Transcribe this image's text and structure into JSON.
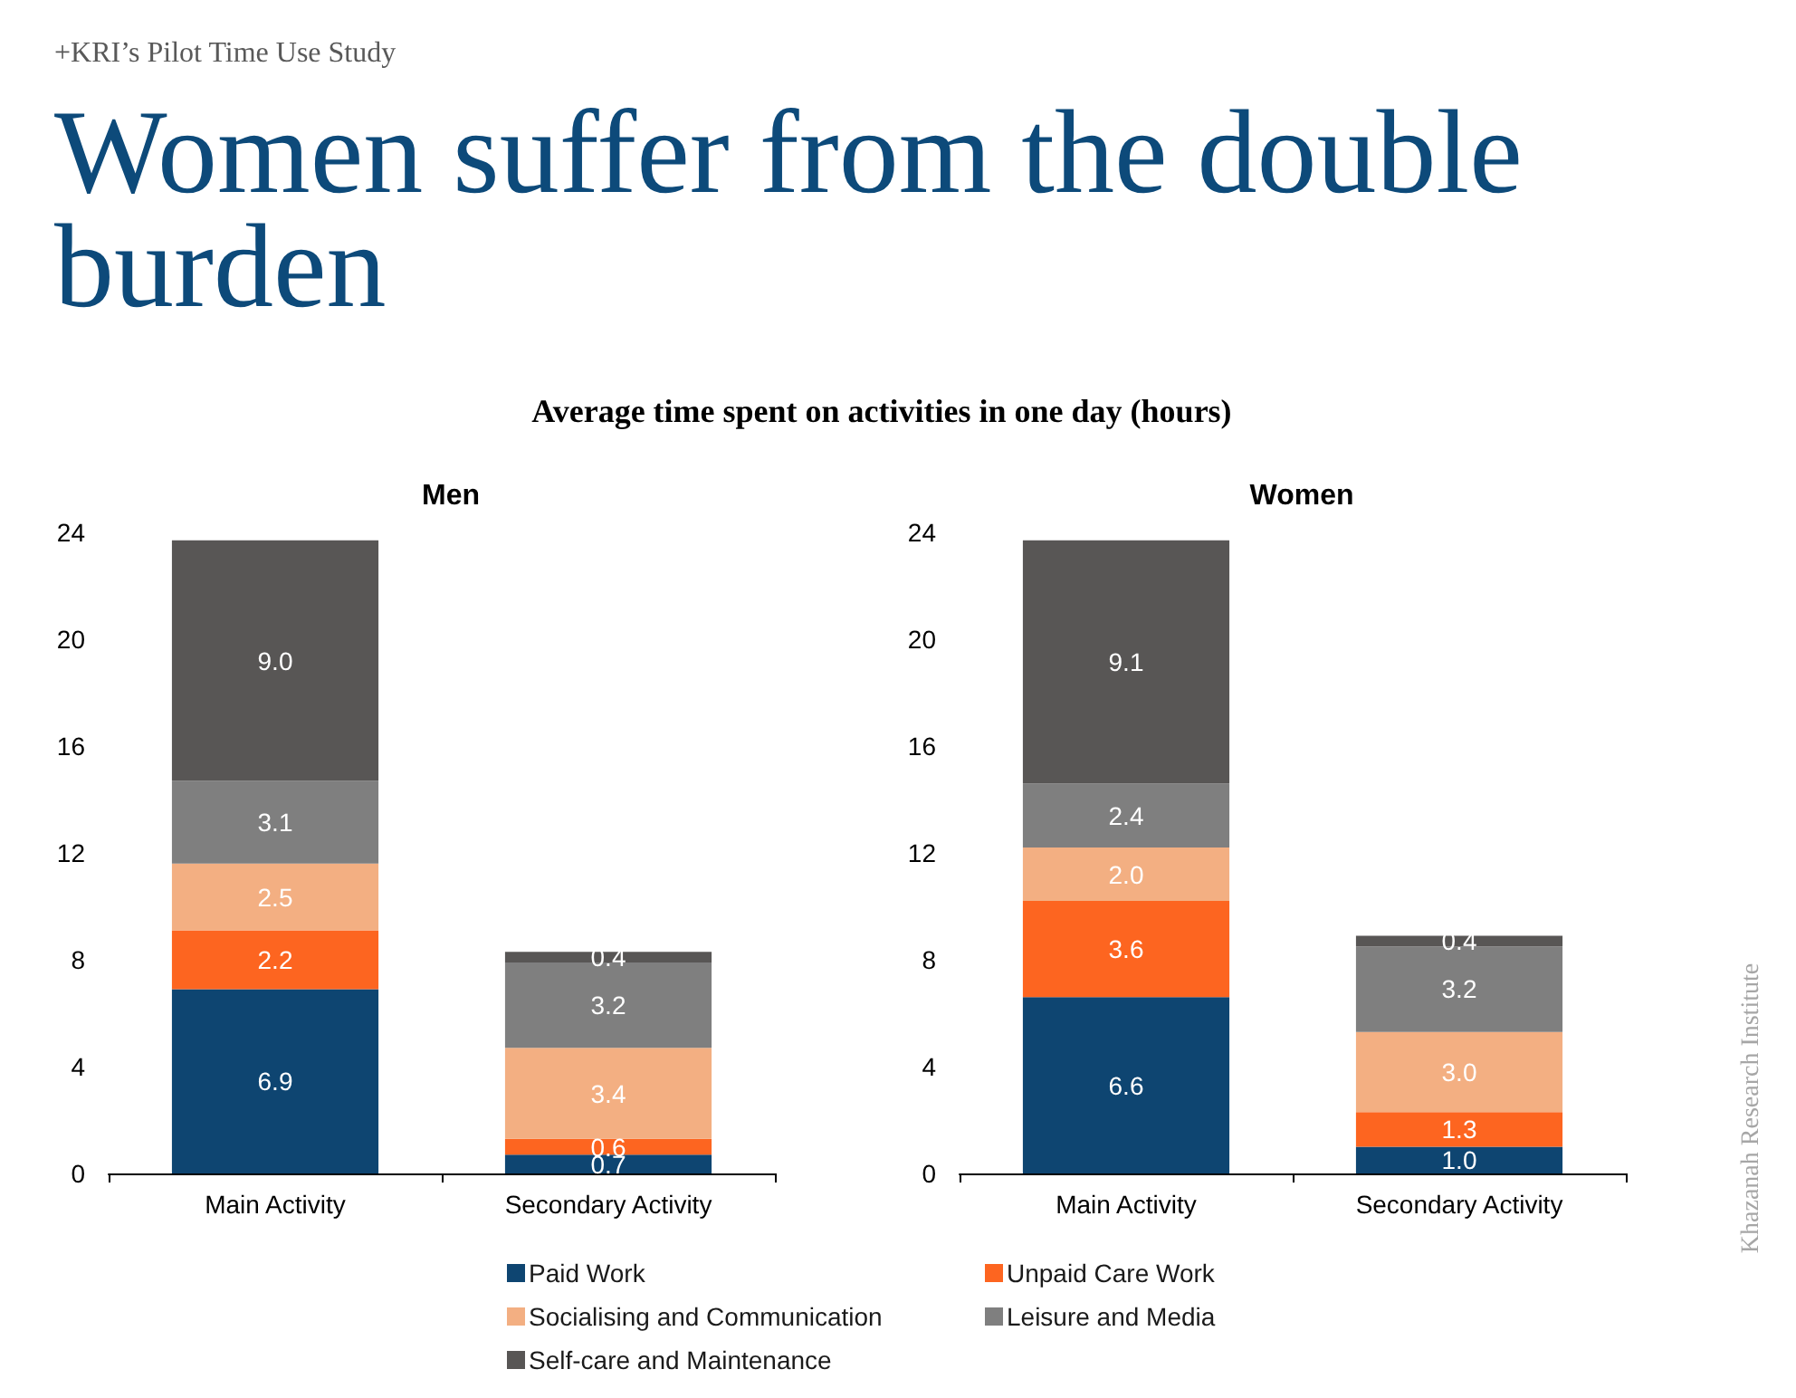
{
  "chart_data": [
    {
      "type": "other",
      "title": "Women suffer from the double burden",
      "subtitle": "Average time spent on activities in one day (hours)",
      "annotations": [
        "+KRI’s Pilot Time Use Study",
        "Khazanah Research Institute"
      ]
    },
    {
      "type": "bar",
      "title": "Men",
      "categories": [
        "Main Activity",
        "Secondary Activity"
      ],
      "stacked": true,
      "ylim": [
        0,
        24
      ],
      "yticks": [
        0,
        4,
        8,
        12,
        16,
        20,
        24
      ],
      "legend": "bottom",
      "series": [
        {
          "name": "Paid Work",
          "color": "#0e4571",
          "values": [
            6.9,
            0.7
          ],
          "value_labels": [
            "6.9",
            "0.7"
          ]
        },
        {
          "name": "Unpaid Care Work",
          "color": "#fd6520",
          "values": [
            2.2,
            0.6
          ],
          "value_labels": [
            "2.2",
            "0.6"
          ]
        },
        {
          "name": "Socialising and Communication",
          "color": "#f3af82",
          "values": [
            2.5,
            3.4
          ],
          "value_labels": [
            "2.5",
            "3.4"
          ]
        },
        {
          "name": "Leisure and Media",
          "color": "#7f7f7f",
          "values": [
            3.1,
            3.2
          ],
          "value_labels": [
            "3.1",
            "3.2"
          ]
        },
        {
          "name": "Self-care and Maintenance",
          "color": "#585655",
          "values": [
            9.0,
            0.4
          ],
          "value_labels": [
            "9.0",
            "0.4"
          ]
        }
      ]
    },
    {
      "type": "bar",
      "title": "Women",
      "categories": [
        "Main Activity",
        "Secondary Activity"
      ],
      "stacked": true,
      "ylim": [
        0,
        24
      ],
      "yticks": [
        0,
        4,
        8,
        12,
        16,
        20,
        24
      ],
      "legend": "bottom",
      "series": [
        {
          "name": "Paid Work",
          "color": "#0e4571",
          "values": [
            6.6,
            1.0
          ],
          "value_labels": [
            "6.6",
            "1.0"
          ]
        },
        {
          "name": "Unpaid Care Work",
          "color": "#fd6520",
          "values": [
            3.6,
            1.3
          ],
          "value_labels": [
            "3.6",
            "1.3"
          ]
        },
        {
          "name": "Socialising and Communication",
          "color": "#f3af82",
          "values": [
            2.0,
            3.0
          ],
          "value_labels": [
            "2.0",
            "3.0"
          ]
        },
        {
          "name": "Leisure and Media",
          "color": "#7f7f7f",
          "values": [
            2.4,
            3.2
          ],
          "value_labels": [
            "2.4",
            "3.2"
          ]
        },
        {
          "name": "Self-care and Maintenance",
          "color": "#585655",
          "values": [
            9.1,
            0.4
          ],
          "value_labels": [
            "9.1",
            "0.4"
          ]
        }
      ]
    }
  ]
}
